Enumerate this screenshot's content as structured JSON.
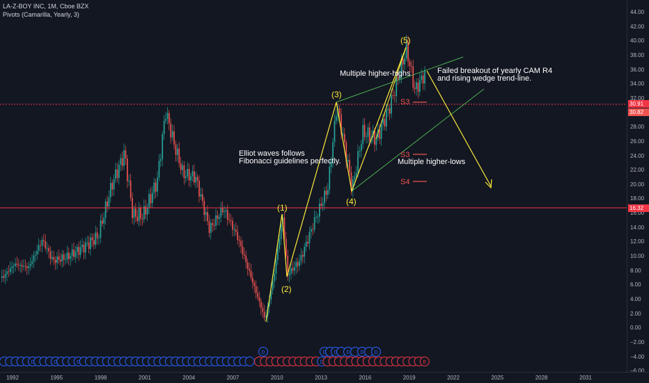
{
  "header": {
    "symbol": "LA-Z-BOY INC, 1M, Cboe BZX",
    "indicator": "Pivots (Camarilla, Yearly, 3)"
  },
  "price_axis": {
    "ticks": [
      "44.00",
      "42.00",
      "40.00",
      "38.00",
      "36.00",
      "34.00",
      "32.00",
      "30.00",
      "28.00",
      "26.00",
      "24.00",
      "22.00",
      "20.00",
      "18.00",
      "16.00",
      "14.00",
      "12.00",
      "10.00",
      "8.00",
      "6.00",
      "4.00",
      "2.00",
      "0.00",
      "−2.00",
      "−4.00",
      "−6.00"
    ],
    "labels": [
      {
        "text": "30.91",
        "color": "#f23645"
      },
      {
        "text": "30.82",
        "color": "#ef5350"
      },
      {
        "text": "16.32",
        "color": "#f23645"
      }
    ]
  },
  "time_axis": {
    "ticks": [
      "1992",
      "1995",
      "1998",
      "2001",
      "2004",
      "2007",
      "2010",
      "2013",
      "2016",
      "2019",
      "2022",
      "2025",
      "2028",
      "2031"
    ]
  },
  "annotations": {
    "wave1": "(1)",
    "wave2": "(2)",
    "wave3": "(3)",
    "wave4": "(4)",
    "wave5": "(5)",
    "elliot_line1": "Elliot waves follows",
    "elliot_line2": "Fibonacci guidelines perfectly.",
    "higher_highs": "Multiple higher-highs",
    "higher_lows": "Multiple higher-lows",
    "breakout_line1": "Failed breakout of yearly CAM R4",
    "breakout_line2": "and rising wedge trend-line.",
    "s3": "S3",
    "s3b": "S3",
    "s4": "S4"
  },
  "events": {
    "dividend_marker": "D",
    "earnings_marker": "E"
  },
  "colors": {
    "background": "#131722",
    "up_candle": "#26a69a",
    "down_candle": "#ef5350",
    "annotation": "#ffeb3b",
    "trendline": "#4caf50",
    "level": "#f23645",
    "pivot": "#ff7043"
  }
}
